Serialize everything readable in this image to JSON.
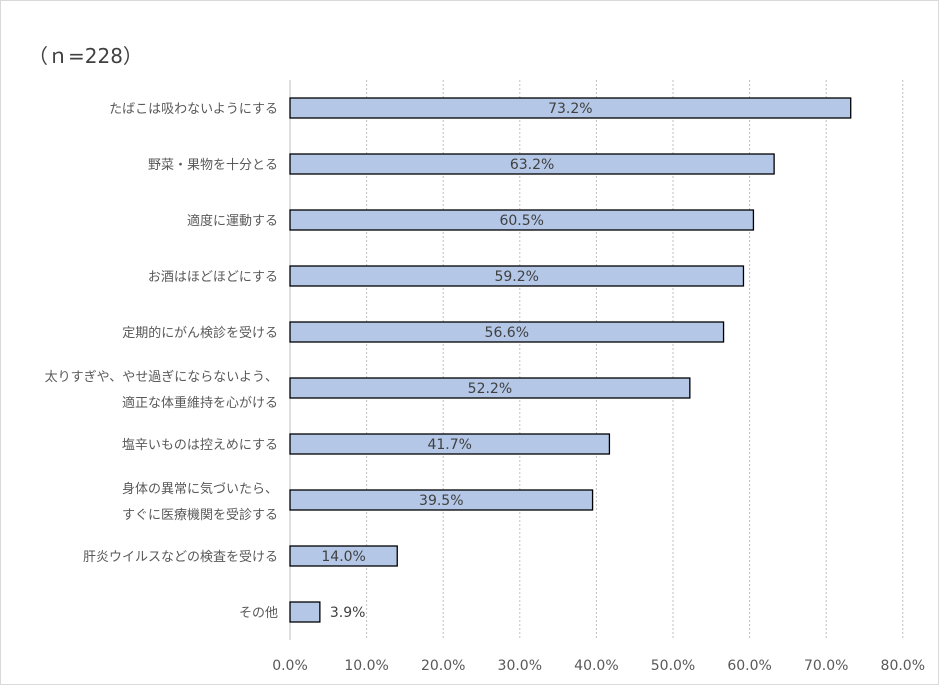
{
  "sample_label": "（ｎ=228）",
  "colors": {
    "bar_fill": "#b4c7e7",
    "bar_stroke": "#000000",
    "grid": "#bfbfbf"
  },
  "chart_data": {
    "type": "bar",
    "orientation": "horizontal",
    "title": "",
    "xlabel": "",
    "ylabel": "",
    "xlim": [
      0,
      80
    ],
    "grid": true,
    "categories": [
      [
        "たばこは吸わないようにする"
      ],
      [
        "野菜・果物を十分とる"
      ],
      [
        "適度に運動する"
      ],
      [
        "お酒はほどほどにする"
      ],
      [
        "定期的にがん検診を受ける"
      ],
      [
        "太りすぎや、やせ過ぎにならないよう、",
        "適正な体重維持を心がける"
      ],
      [
        "塩辛いものは控えめにする"
      ],
      [
        "身体の異常に気づいたら、",
        "すぐに医療機関を受診する"
      ],
      [
        "肝炎ウイルスなどの検査を受ける"
      ],
      [
        "その他"
      ]
    ],
    "values": [
      73.2,
      63.2,
      60.5,
      59.2,
      56.6,
      52.2,
      41.7,
      39.5,
      14.0,
      3.9
    ],
    "value_labels": [
      "73.2%",
      "63.2%",
      "60.5%",
      "59.2%",
      "56.6%",
      "52.2%",
      "41.7%",
      "39.5%",
      "14.0%",
      "3.9%"
    ],
    "x_ticks": [
      "0.0%",
      "10.0%",
      "20.0%",
      "30.0%",
      "40.0%",
      "50.0%",
      "60.0%",
      "70.0%",
      "80.0%"
    ]
  }
}
